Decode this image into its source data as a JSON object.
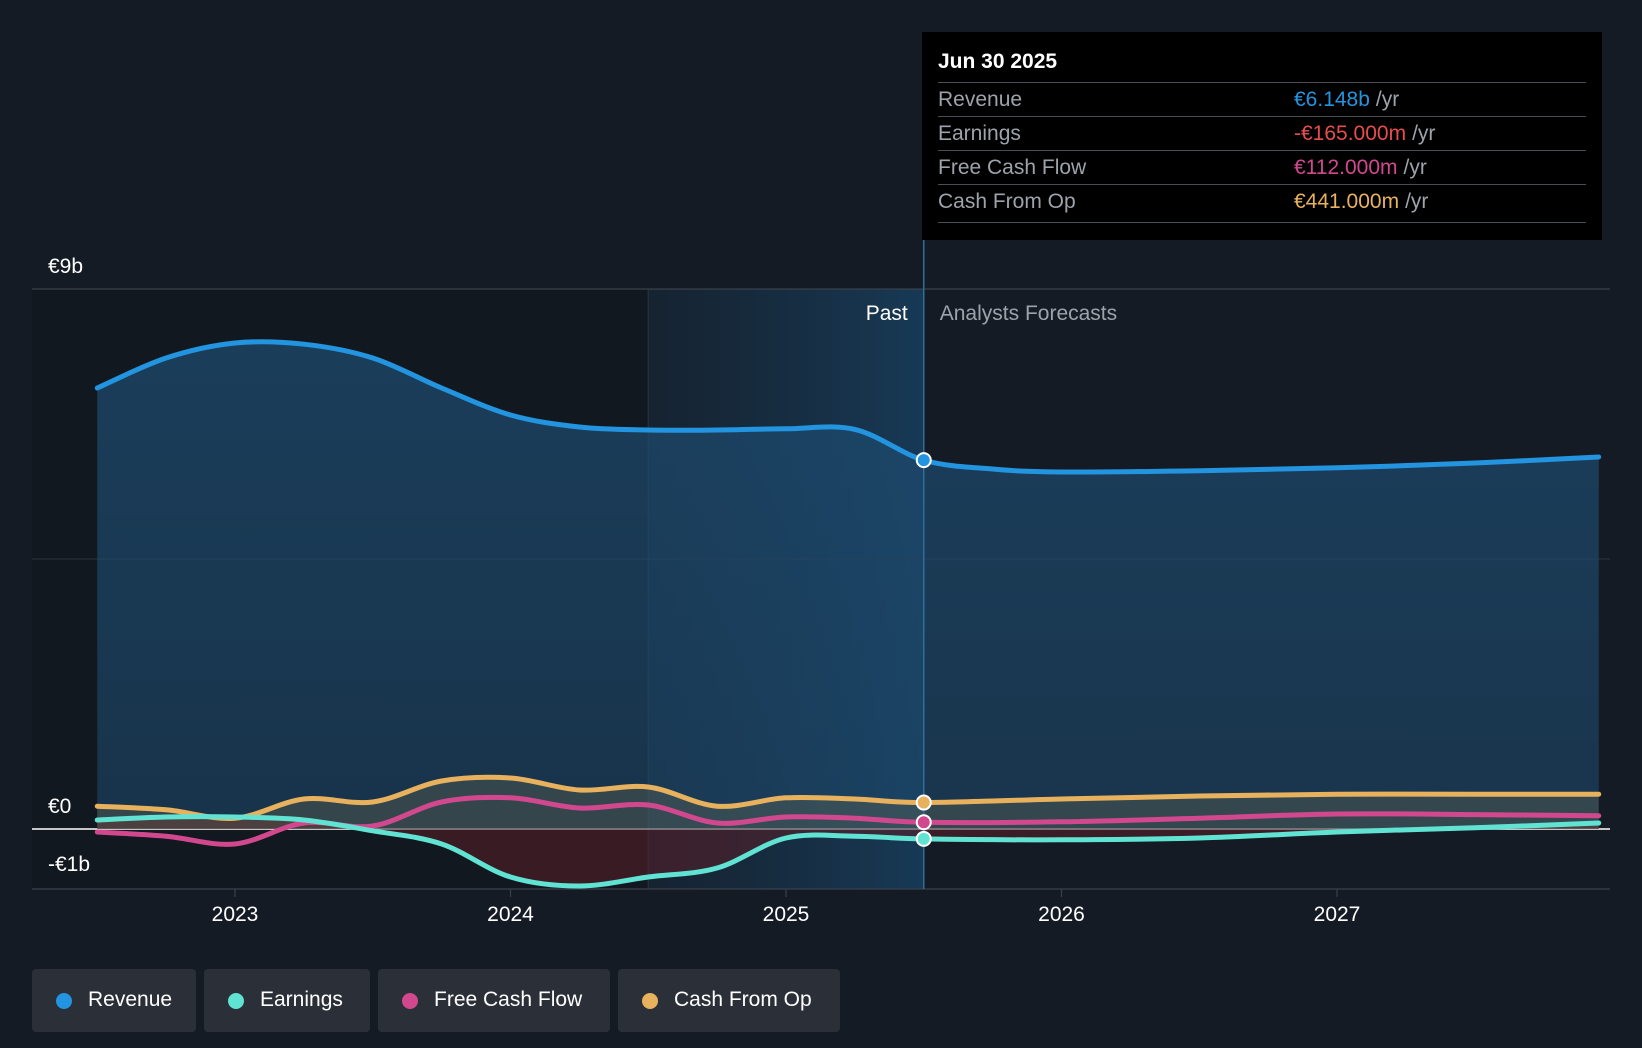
{
  "chart_data": {
    "type": "line",
    "title": "",
    "xlabel": "",
    "ylabel": "",
    "currency_unit": "€b",
    "ylim": [
      -1,
      9
    ],
    "y_tick_labels": [
      {
        "value": 9,
        "label": "€9b"
      },
      {
        "value": 0,
        "label": "€0"
      },
      {
        "value": -1,
        "label": "-€1b"
      }
    ],
    "x_ticks": [
      {
        "value": 2023,
        "label": "2023"
      },
      {
        "value": 2024,
        "label": "2024"
      },
      {
        "value": 2025,
        "label": "2025"
      },
      {
        "value": 2026,
        "label": "2026"
      },
      {
        "value": 2027,
        "label": "2027"
      }
    ],
    "xlim": [
      2022.25,
      2027.95
    ],
    "past_start": 2024.5,
    "divider": 2025.5,
    "past_label": "Past",
    "forecast_label": "Analysts Forecasts",
    "series": [
      {
        "name": "Revenue",
        "color": "#2394df",
        "points": [
          [
            2022.5,
            7.35
          ],
          [
            2022.75,
            7.85
          ],
          [
            2023.0,
            8.1
          ],
          [
            2023.25,
            8.08
          ],
          [
            2023.5,
            7.85
          ],
          [
            2023.75,
            7.35
          ],
          [
            2024.0,
            6.9
          ],
          [
            2024.25,
            6.7
          ],
          [
            2024.5,
            6.65
          ],
          [
            2024.75,
            6.65
          ],
          [
            2025.0,
            6.67
          ],
          [
            2025.25,
            6.66
          ],
          [
            2025.5,
            6.148
          ],
          [
            2025.75,
            6.0
          ],
          [
            2026.0,
            5.95
          ],
          [
            2026.5,
            5.97
          ],
          [
            2027.0,
            6.02
          ],
          [
            2027.5,
            6.1
          ],
          [
            2027.95,
            6.2
          ]
        ]
      },
      {
        "name": "Earnings",
        "color": "#61e3d4",
        "points": [
          [
            2022.5,
            0.15
          ],
          [
            2022.75,
            0.2
          ],
          [
            2023.0,
            0.2
          ],
          [
            2023.25,
            0.15
          ],
          [
            2023.5,
            -0.03
          ],
          [
            2023.75,
            -0.25
          ],
          [
            2024.0,
            -0.8
          ],
          [
            2024.25,
            -0.95
          ],
          [
            2024.5,
            -0.8
          ],
          [
            2024.75,
            -0.65
          ],
          [
            2025.0,
            -0.15
          ],
          [
            2025.25,
            -0.12
          ],
          [
            2025.5,
            -0.165
          ],
          [
            2026.0,
            -0.18
          ],
          [
            2026.5,
            -0.15
          ],
          [
            2027.0,
            -0.05
          ],
          [
            2027.5,
            0.02
          ],
          [
            2027.95,
            0.1
          ]
        ]
      },
      {
        "name": "Free Cash Flow",
        "color": "#d2488f",
        "points": [
          [
            2022.5,
            -0.05
          ],
          [
            2022.75,
            -0.12
          ],
          [
            2023.0,
            -0.25
          ],
          [
            2023.25,
            0.1
          ],
          [
            2023.5,
            0.05
          ],
          [
            2023.75,
            0.45
          ],
          [
            2024.0,
            0.52
          ],
          [
            2024.25,
            0.35
          ],
          [
            2024.5,
            0.4
          ],
          [
            2024.75,
            0.1
          ],
          [
            2025.0,
            0.2
          ],
          [
            2025.25,
            0.18
          ],
          [
            2025.5,
            0.112
          ],
          [
            2026.0,
            0.12
          ],
          [
            2026.5,
            0.18
          ],
          [
            2027.0,
            0.25
          ],
          [
            2027.5,
            0.24
          ],
          [
            2027.95,
            0.22
          ]
        ]
      },
      {
        "name": "Cash From Op",
        "color": "#e8b15e",
        "points": [
          [
            2022.5,
            0.38
          ],
          [
            2022.75,
            0.32
          ],
          [
            2023.0,
            0.18
          ],
          [
            2023.25,
            0.5
          ],
          [
            2023.5,
            0.45
          ],
          [
            2023.75,
            0.8
          ],
          [
            2024.0,
            0.85
          ],
          [
            2024.25,
            0.65
          ],
          [
            2024.5,
            0.7
          ],
          [
            2024.75,
            0.38
          ],
          [
            2025.0,
            0.52
          ],
          [
            2025.25,
            0.5
          ],
          [
            2025.5,
            0.441
          ],
          [
            2026.0,
            0.5
          ],
          [
            2026.5,
            0.55
          ],
          [
            2027.0,
            0.58
          ],
          [
            2027.5,
            0.58
          ],
          [
            2027.95,
            0.58
          ]
        ]
      }
    ],
    "highlight_x": 2025.5
  },
  "tooltip": {
    "date": "Jun 30 2025",
    "rows": [
      {
        "label": "Revenue",
        "value": "€6.148b",
        "unit": "/yr",
        "color": "#2394df"
      },
      {
        "label": "Earnings",
        "value": "-€165.000m",
        "unit": "/yr",
        "color": "#e84d4d"
      },
      {
        "label": "Free Cash Flow",
        "value": "€112.000m",
        "unit": "/yr",
        "color": "#d2488f"
      },
      {
        "label": "Cash From Op",
        "value": "€441.000m",
        "unit": "/yr",
        "color": "#e8b15e"
      }
    ]
  },
  "legend": [
    {
      "label": "Revenue",
      "color": "#2394df"
    },
    {
      "label": "Earnings",
      "color": "#61e3d4"
    },
    {
      "label": "Free Cash Flow",
      "color": "#d2488f"
    },
    {
      "label": "Cash From Op",
      "color": "#e8b15e"
    }
  ]
}
